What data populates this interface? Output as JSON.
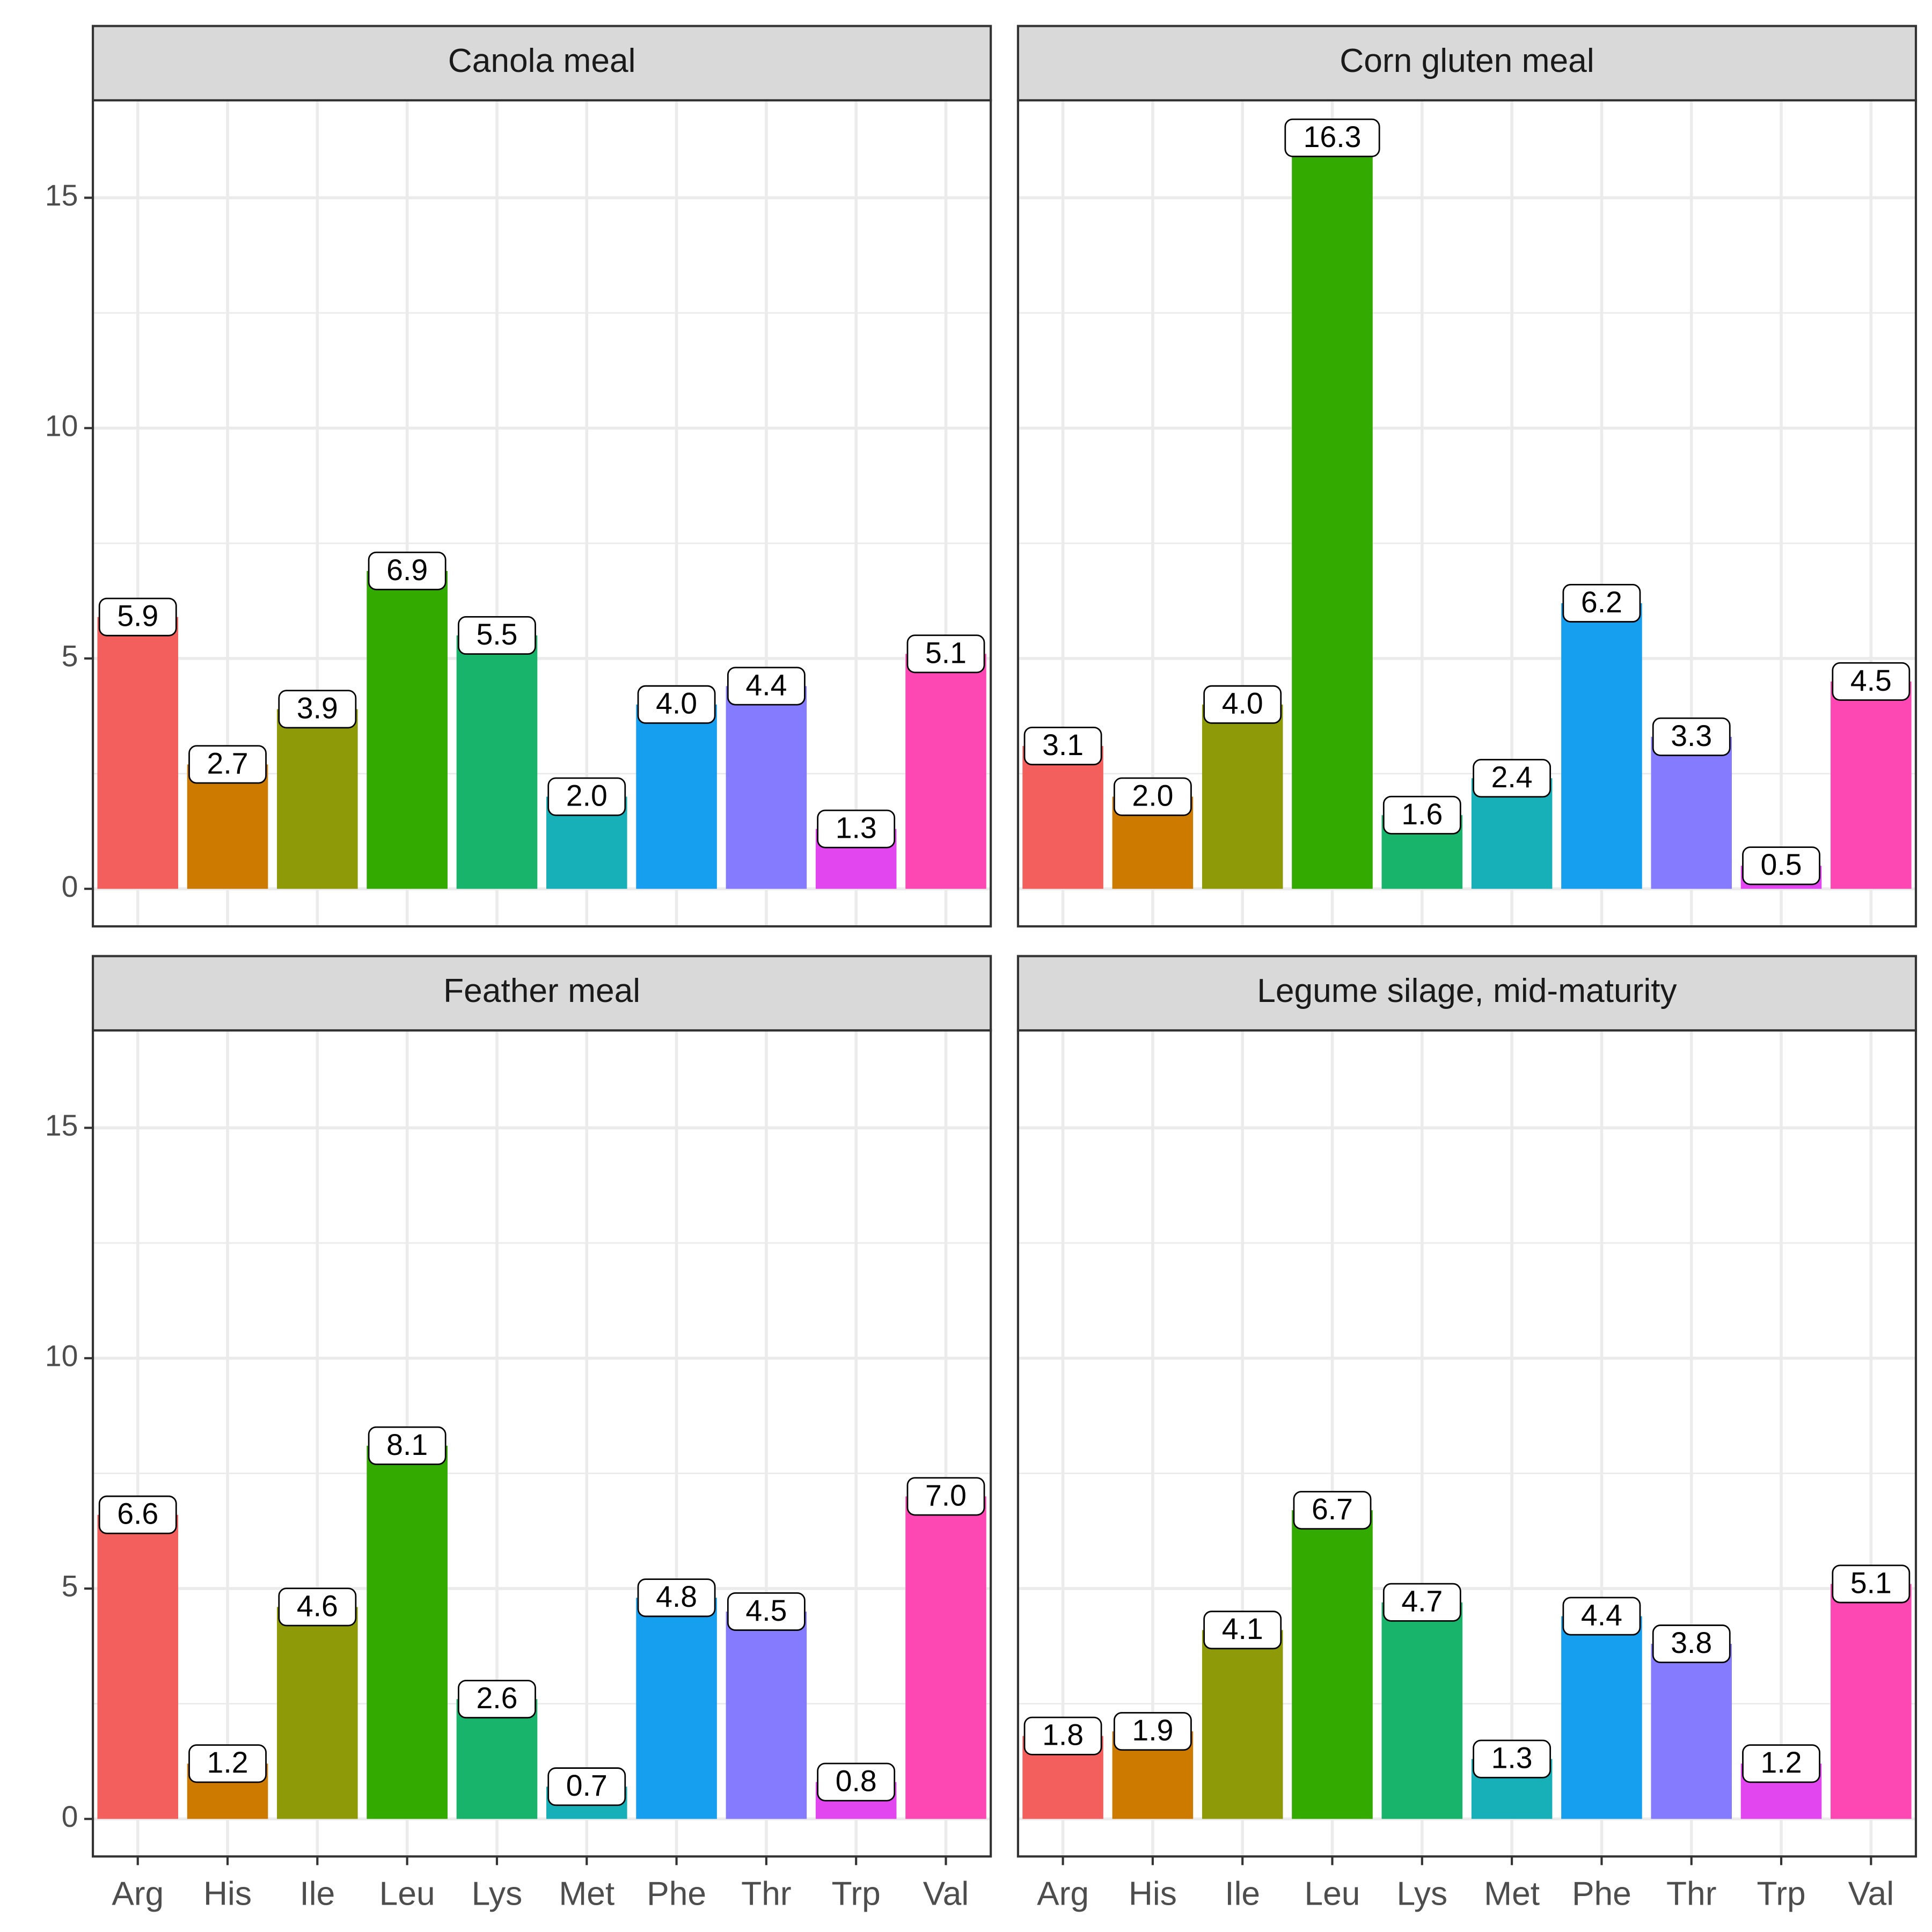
{
  "chart_data": [
    {
      "type": "bar",
      "title": "Canola meal",
      "categories": [
        "Arg",
        "His",
        "Ile",
        "Leu",
        "Lys",
        "Met",
        "Phe",
        "Thr",
        "Trp",
        "Val"
      ],
      "values": [
        5.9,
        2.7,
        3.9,
        6.9,
        5.5,
        2.0,
        4.0,
        4.4,
        1.3,
        5.1
      ],
      "value_labels": [
        "5.9",
        "2.7",
        "3.9",
        "6.9",
        "5.5",
        "2.0",
        "4.0",
        "4.4",
        "1.3",
        "5.1"
      ],
      "colors": [
        "#F25F5C",
        "#CC7A00",
        "#8F9A08",
        "#33AA00",
        "#19B46C",
        "#18B0B8",
        "#169FEE",
        "#847BFF",
        "#E146EF",
        "#FD47B3"
      ],
      "ylim": [
        -0.815,
        17.115
      ],
      "yticks": [
        0,
        5,
        10,
        15
      ],
      "grid": true
    },
    {
      "type": "bar",
      "title": "Corn gluten meal",
      "categories": [
        "Arg",
        "His",
        "Ile",
        "Leu",
        "Lys",
        "Met",
        "Phe",
        "Thr",
        "Trp",
        "Val"
      ],
      "values": [
        3.1,
        2.0,
        4.0,
        16.3,
        1.6,
        2.4,
        6.2,
        3.3,
        0.5,
        4.5
      ],
      "value_labels": [
        "3.1",
        "2.0",
        "4.0",
        "16.3",
        "1.6",
        "2.4",
        "6.2",
        "3.3",
        "0.5",
        "4.5"
      ],
      "colors": [
        "#F25F5C",
        "#CC7A00",
        "#8F9A08",
        "#33AA00",
        "#19B46C",
        "#18B0B8",
        "#169FEE",
        "#847BFF",
        "#E146EF",
        "#FD47B3"
      ],
      "ylim": [
        -0.815,
        17.115
      ],
      "yticks": [
        0,
        5,
        10,
        15
      ],
      "grid": true
    },
    {
      "type": "bar",
      "title": "Feather meal",
      "categories": [
        "Arg",
        "His",
        "Ile",
        "Leu",
        "Lys",
        "Met",
        "Phe",
        "Thr",
        "Trp",
        "Val"
      ],
      "values": [
        6.6,
        1.2,
        4.6,
        8.1,
        2.6,
        0.7,
        4.8,
        4.5,
        0.8,
        7.0
      ],
      "value_labels": [
        "6.6",
        "1.2",
        "4.6",
        "8.1",
        "2.6",
        "0.7",
        "4.8",
        "4.5",
        "0.8",
        "7.0"
      ],
      "colors": [
        "#F25F5C",
        "#CC7A00",
        "#8F9A08",
        "#33AA00",
        "#19B46C",
        "#18B0B8",
        "#169FEE",
        "#847BFF",
        "#E146EF",
        "#FD47B3"
      ],
      "ylim": [
        -0.815,
        17.115
      ],
      "yticks": [
        0,
        5,
        10,
        15
      ],
      "grid": true
    },
    {
      "type": "bar",
      "title": "Legume silage, mid-maturity",
      "categories": [
        "Arg",
        "His",
        "Ile",
        "Leu",
        "Lys",
        "Met",
        "Phe",
        "Thr",
        "Trp",
        "Val"
      ],
      "values": [
        1.8,
        1.9,
        4.1,
        6.7,
        4.7,
        1.3,
        4.4,
        3.8,
        1.2,
        5.1
      ],
      "value_labels": [
        "1.8",
        "1.9",
        "4.1",
        "6.7",
        "4.7",
        "1.3",
        "4.4",
        "3.8",
        "1.2",
        "5.1"
      ],
      "colors": [
        "#F25F5C",
        "#CC7A00",
        "#8F9A08",
        "#33AA00",
        "#19B46C",
        "#18B0B8",
        "#169FEE",
        "#847BFF",
        "#E146EF",
        "#FD47B3"
      ],
      "ylim": [
        -0.815,
        17.115
      ],
      "yticks": [
        0,
        5,
        10,
        15
      ],
      "grid": true
    }
  ]
}
